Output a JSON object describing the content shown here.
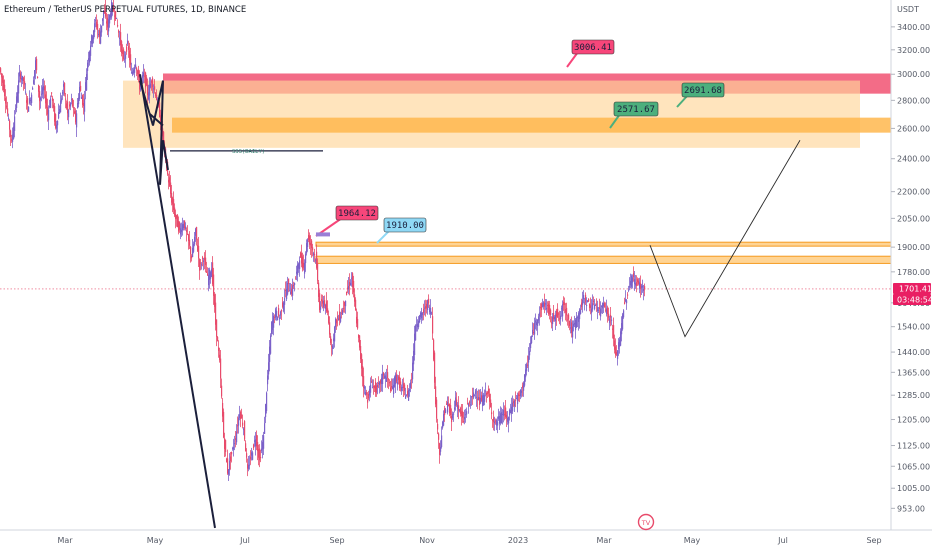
{
  "header": {
    "title": "Ethereum / TetherUS PERPETUAL FUTURES, 1D, BINANCE"
  },
  "price_axis": {
    "currency": "USDT",
    "last_price": "1701.41",
    "countdown": "03:48:54",
    "last_price_color": "#e91e63"
  },
  "colors": {
    "up": "#7b61c9",
    "down": "#e84a6a",
    "zone_red": "#f25c7a",
    "zone_orange": "#ffb74d",
    "zone_light": "#ffd699",
    "label_pink": "#f7467a",
    "label_green": "#4caf7d",
    "label_blue": "#8fd8f5"
  },
  "annotations": {
    "sss_label": "SSS(DAILY)",
    "logo": "TV"
  },
  "chart_data": {
    "type": "candlestick",
    "title": "Ethereum / TetherUS PERPETUAL FUTURES, 1D, BINANCE",
    "y_axis": {
      "unit": "USDT",
      "scale": "log",
      "ticks": [
        "3400.00",
        "3200.00",
        "3000.00",
        "2800.00",
        "2600.00",
        "2400.00",
        "2200.00",
        "2050.00",
        "1900.00",
        "1780.00",
        "1640.00",
        "1540.00",
        "1440.00",
        "1365.00",
        "1285.00",
        "1205.00",
        "1125.00",
        "1065.00",
        "1005.00",
        "953.00"
      ],
      "range": [
        900,
        3650
      ]
    },
    "x_axis": {
      "ticks": [
        "Mar",
        "May",
        "Jul",
        "Sep",
        "Nov",
        "2023",
        "Mar",
        "May",
        "Jul",
        "Sep"
      ]
    },
    "price_path": [
      [
        0,
        3050
      ],
      [
        4,
        2900
      ],
      [
        8,
        2700
      ],
      [
        12,
        2500
      ],
      [
        16,
        2750
      ],
      [
        20,
        3000
      ],
      [
        24,
        2950
      ],
      [
        28,
        2750
      ],
      [
        32,
        2850
      ],
      [
        36,
        3100
      ],
      [
        40,
        2800
      ],
      [
        44,
        2900
      ],
      [
        48,
        2700
      ],
      [
        52,
        2850
      ],
      [
        56,
        2600
      ],
      [
        60,
        2750
      ],
      [
        64,
        2900
      ],
      [
        68,
        2700
      ],
      [
        72,
        2800
      ],
      [
        76,
        2650
      ],
      [
        80,
        2900
      ],
      [
        84,
        2750
      ],
      [
        88,
        3100
      ],
      [
        92,
        3300
      ],
      [
        96,
        3450
      ],
      [
        100,
        3300
      ],
      [
        104,
        3550
      ],
      [
        108,
        3400
      ],
      [
        112,
        3600
      ],
      [
        116,
        3500
      ],
      [
        120,
        3300
      ],
      [
        124,
        3100
      ],
      [
        128,
        3250
      ],
      [
        132,
        3000
      ],
      [
        136,
        3100
      ],
      [
        140,
        2900
      ],
      [
        144,
        3000
      ],
      [
        148,
        2850
      ],
      [
        152,
        2950
      ],
      [
        156,
        2850
      ],
      [
        160,
        2700
      ],
      [
        164,
        2500
      ],
      [
        168,
        2300
      ],
      [
        172,
        2150
      ],
      [
        176,
        2050
      ],
      [
        180,
        1980
      ],
      [
        184,
        2030
      ],
      [
        188,
        1950
      ],
      [
        192,
        1850
      ],
      [
        196,
        1980
      ],
      [
        200,
        1800
      ],
      [
        204,
        1850
      ],
      [
        208,
        1750
      ],
      [
        212,
        1800
      ],
      [
        216,
        1550
      ],
      [
        220,
        1400
      ],
      [
        224,
        1150
      ],
      [
        228,
        1050
      ],
      [
        232,
        1100
      ],
      [
        236,
        1150
      ],
      [
        240,
        1230
      ],
      [
        244,
        1180
      ],
      [
        248,
        1050
      ],
      [
        252,
        1100
      ],
      [
        256,
        1150
      ],
      [
        260,
        1080
      ],
      [
        264,
        1150
      ],
      [
        268,
        1350
      ],
      [
        272,
        1550
      ],
      [
        276,
        1600
      ],
      [
        280,
        1580
      ],
      [
        284,
        1650
      ],
      [
        288,
        1720
      ],
      [
        292,
        1690
      ],
      [
        296,
        1750
      ],
      [
        300,
        1850
      ],
      [
        304,
        1800
      ],
      [
        308,
        1950
      ],
      [
        312,
        1900
      ],
      [
        316,
        1850
      ],
      [
        320,
        1620
      ],
      [
        324,
        1650
      ],
      [
        328,
        1590
      ],
      [
        332,
        1450
      ],
      [
        336,
        1560
      ],
      [
        340,
        1580
      ],
      [
        344,
        1620
      ],
      [
        348,
        1700
      ],
      [
        352,
        1750
      ],
      [
        356,
        1600
      ],
      [
        360,
        1450
      ],
      [
        364,
        1320
      ],
      [
        368,
        1270
      ],
      [
        372,
        1330
      ],
      [
        376,
        1300
      ],
      [
        380,
        1320
      ],
      [
        384,
        1360
      ],
      [
        388,
        1340
      ],
      [
        392,
        1300
      ],
      [
        396,
        1350
      ],
      [
        400,
        1320
      ],
      [
        404,
        1300
      ],
      [
        408,
        1280
      ],
      [
        412,
        1350
      ],
      [
        416,
        1550
      ],
      [
        420,
        1580
      ],
      [
        424,
        1600
      ],
      [
        428,
        1640
      ],
      [
        432,
        1600
      ],
      [
        436,
        1250
      ],
      [
        440,
        1100
      ],
      [
        444,
        1220
      ],
      [
        448,
        1260
      ],
      [
        452,
        1200
      ],
      [
        456,
        1270
      ],
      [
        460,
        1230
      ],
      [
        464,
        1200
      ],
      [
        468,
        1250
      ],
      [
        472,
        1270
      ],
      [
        476,
        1300
      ],
      [
        480,
        1260
      ],
      [
        484,
        1280
      ],
      [
        488,
        1300
      ],
      [
        492,
        1220
      ],
      [
        496,
        1190
      ],
      [
        500,
        1210
      ],
      [
        504,
        1230
      ],
      [
        508,
        1200
      ],
      [
        512,
        1250
      ],
      [
        516,
        1270
      ],
      [
        520,
        1280
      ],
      [
        524,
        1330
      ],
      [
        528,
        1400
      ],
      [
        532,
        1500
      ],
      [
        536,
        1560
      ],
      [
        540,
        1600
      ],
      [
        544,
        1640
      ],
      [
        548,
        1620
      ],
      [
        552,
        1560
      ],
      [
        556,
        1600
      ],
      [
        560,
        1570
      ],
      [
        564,
        1640
      ],
      [
        568,
        1580
      ],
      [
        572,
        1520
      ],
      [
        576,
        1560
      ],
      [
        580,
        1600
      ],
      [
        584,
        1660
      ],
      [
        588,
        1640
      ],
      [
        592,
        1620
      ],
      [
        596,
        1640
      ],
      [
        600,
        1600
      ],
      [
        604,
        1650
      ],
      [
        608,
        1590
      ],
      [
        612,
        1560
      ],
      [
        616,
        1420
      ],
      [
        620,
        1480
      ],
      [
        624,
        1620
      ],
      [
        628,
        1680
      ],
      [
        632,
        1760
      ],
      [
        636,
        1730
      ],
      [
        640,
        1720
      ],
      [
        644,
        1701
      ]
    ],
    "zones": [
      {
        "name": "red supply zone",
        "y_top": 3006,
        "y_bottom": 2850
      },
      {
        "name": "light orange zone",
        "y_top": 2950,
        "y_bottom": 2470
      },
      {
        "name": "orange band",
        "y_top": 2675,
        "y_bottom": 2571
      },
      {
        "name": "lower orange band 1",
        "y_top": 1925,
        "y_bottom": 1905
      },
      {
        "name": "lower orange band 2",
        "y_top": 1855,
        "y_bottom": 1820
      }
    ],
    "levels": [
      {
        "label": "3006.41",
        "value": 3006.41
      },
      {
        "label": "2691.68",
        "value": 2691.68
      },
      {
        "label": "2571.67",
        "value": 2571.67
      },
      {
        "label": "1964.12",
        "value": 1964.12
      },
      {
        "label": "1910.00",
        "value": 1910.0
      },
      {
        "label": "SSS(DAILY)",
        "value": 2450
      }
    ],
    "projection": [
      {
        "x": 650,
        "y": 1910
      },
      {
        "x": 685,
        "y": 1500
      },
      {
        "x": 800,
        "y": 2520
      }
    ],
    "trendlines": [
      {
        "from": {
          "x": 140,
          "y": 3000
        },
        "to": {
          "x": 215,
          "y": 905
        }
      },
      {
        "from": {
          "x": 150,
          "y": 2700
        },
        "to": {
          "x": 163,
          "y": 2620
        }
      }
    ]
  }
}
